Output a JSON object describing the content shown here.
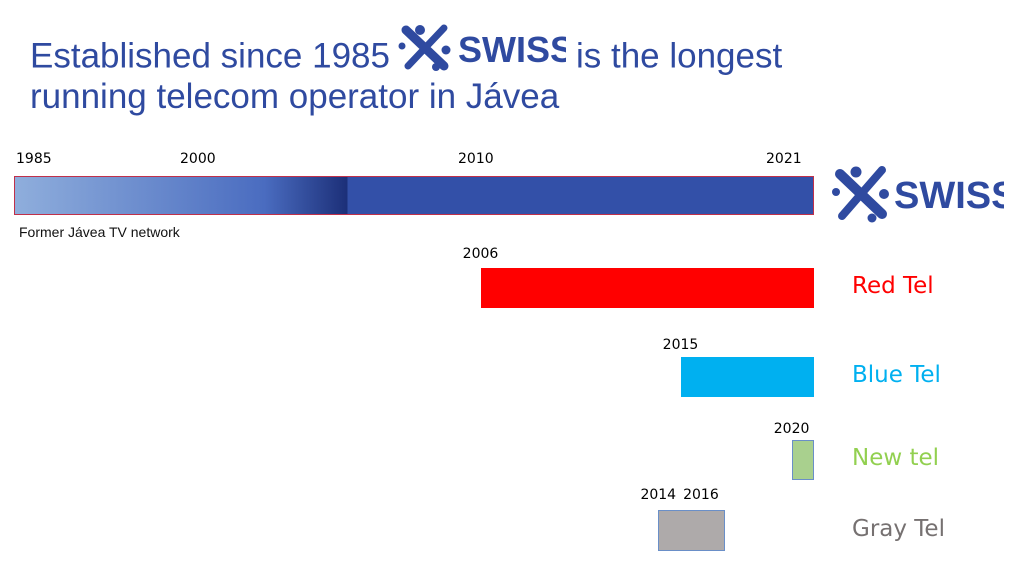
{
  "title": {
    "line1_prefix": "Established since 1985",
    "line1_suffix": "is the longest",
    "line2": "running telecom operator in Jávea"
  },
  "logo": {
    "text": "SWISS",
    "color": "#2f4aa0"
  },
  "note": "Former Jávea TV network",
  "chart_data": {
    "type": "timeline",
    "x_unit": "year",
    "xlim": [
      1985,
      2021
    ],
    "top_ticks": [
      "1985",
      "2000",
      "2010",
      "2021"
    ],
    "bars": [
      {
        "name": "SWISS",
        "start": 1985,
        "end": 2021,
        "start_label": "",
        "end_label": "",
        "color": "#3350a8",
        "gradient_until": 2000,
        "gradient_start_color": "#8faedc",
        "label_is_logo": true
      },
      {
        "name": "Red Tel",
        "start": 2006,
        "end": 2021,
        "start_label": "2006",
        "end_label": "",
        "color": "#ff0000",
        "label_color": "#ff0000"
      },
      {
        "name": "Blue Tel",
        "start": 2015,
        "end": 2021,
        "start_label": "2015",
        "end_label": "",
        "color": "#00b0f0",
        "label_color": "#00b0f0"
      },
      {
        "name": "New tel",
        "start": 2020,
        "end": 2021,
        "start_label": "2020",
        "end_label": "",
        "color": "#a9d08e",
        "label_color": "#92d050"
      },
      {
        "name": "Gray Tel",
        "start": 2014,
        "end": 2017,
        "start_label": "2014",
        "end_label": "2016",
        "color": "#aeaaaa",
        "label_color": "#767171"
      }
    ]
  }
}
